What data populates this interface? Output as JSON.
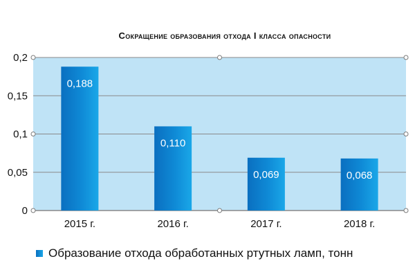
{
  "chart_data": {
    "type": "bar",
    "title": "Сокращение образования отхода I класса опасности",
    "categories": [
      "2015 г.",
      "2016 г.",
      "2017 г.",
      "2018 г."
    ],
    "series": [
      {
        "name": "Образование отхода обработанных ртутных ламп, тонн",
        "values": [
          0.188,
          0.11,
          0.069,
          0.068
        ],
        "labels": [
          "0,188",
          "0,110",
          "0,069",
          "0,068"
        ]
      }
    ],
    "ylim": [
      0,
      0.2
    ],
    "yticks": [
      0,
      0.05,
      0.1,
      0.15,
      0.2
    ],
    "ytick_labels": [
      "0",
      "0,05",
      "0,1",
      "0,15",
      "0,2"
    ],
    "grid": true,
    "legend_position": "bottom",
    "colors": {
      "plot_background": "#bfe3f6",
      "gridline": "#8a8a8a",
      "bar_light": "#1aa7e8",
      "bar_dark": "#0a6fc0"
    }
  }
}
